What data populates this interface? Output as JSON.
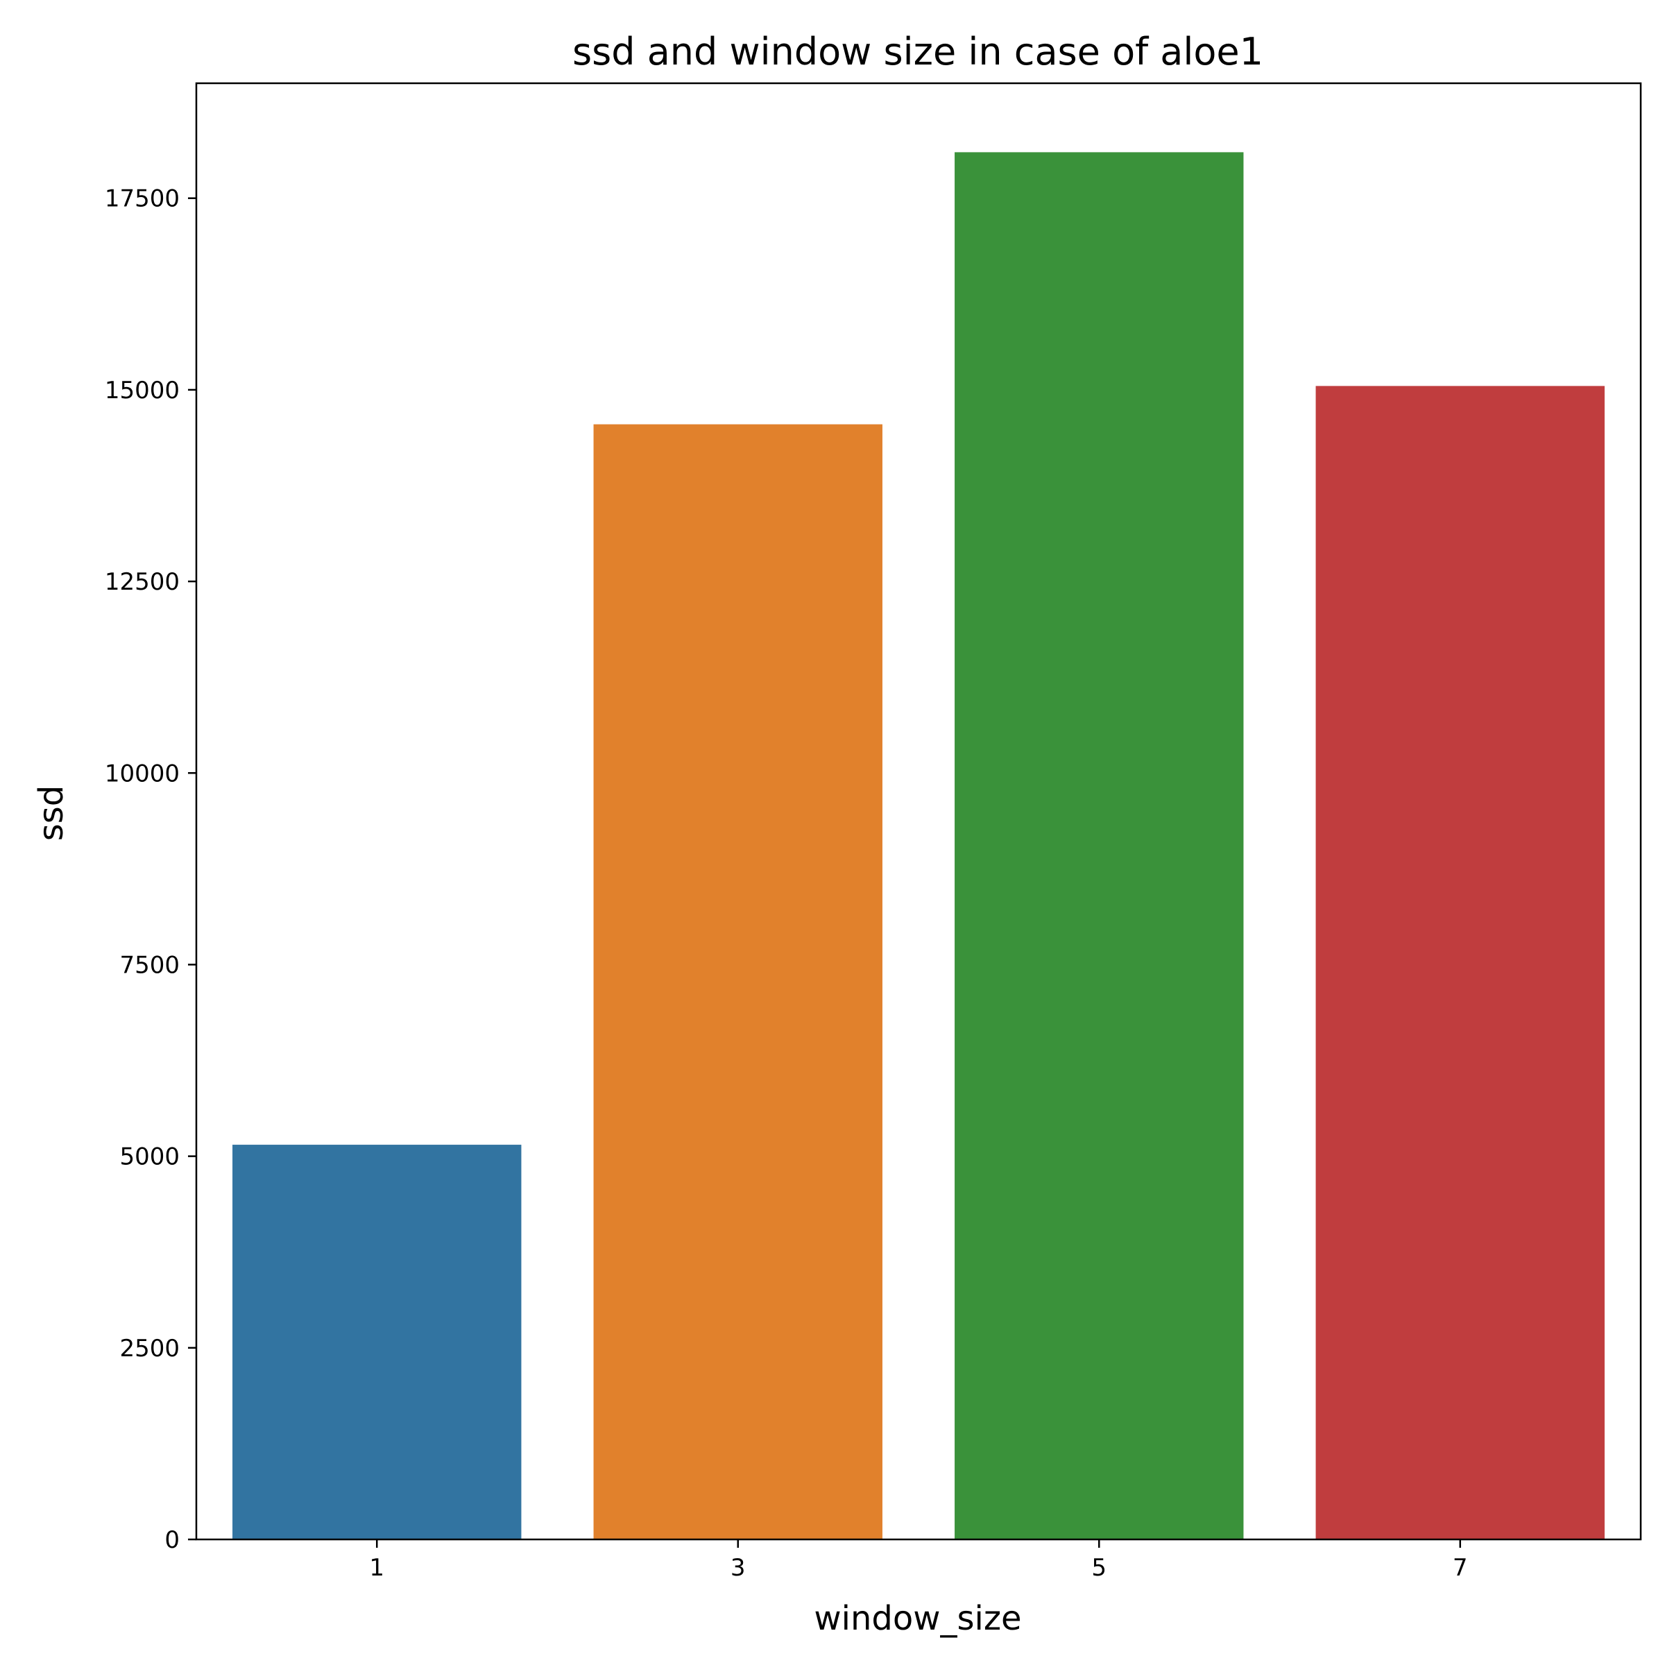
{
  "chart_data": {
    "type": "bar",
    "title": "ssd and window size in case of aloe1",
    "xlabel": "window_size",
    "ylabel": "ssd",
    "categories": [
      "1",
      "3",
      "5",
      "7"
    ],
    "values": [
      5150,
      14550,
      18100,
      15050
    ],
    "colors": [
      "#3274a1",
      "#e1812c",
      "#3a923a",
      "#c03d3e"
    ],
    "ylim": [
      0,
      19000
    ],
    "yticks": [
      0,
      2500,
      5000,
      7500,
      10000,
      12500,
      15000,
      17500
    ],
    "ytick_labels": [
      "0",
      "2500",
      "5000",
      "7500",
      "10000",
      "12500",
      "15000",
      "17500"
    ],
    "grid": false,
    "legend": false
  }
}
